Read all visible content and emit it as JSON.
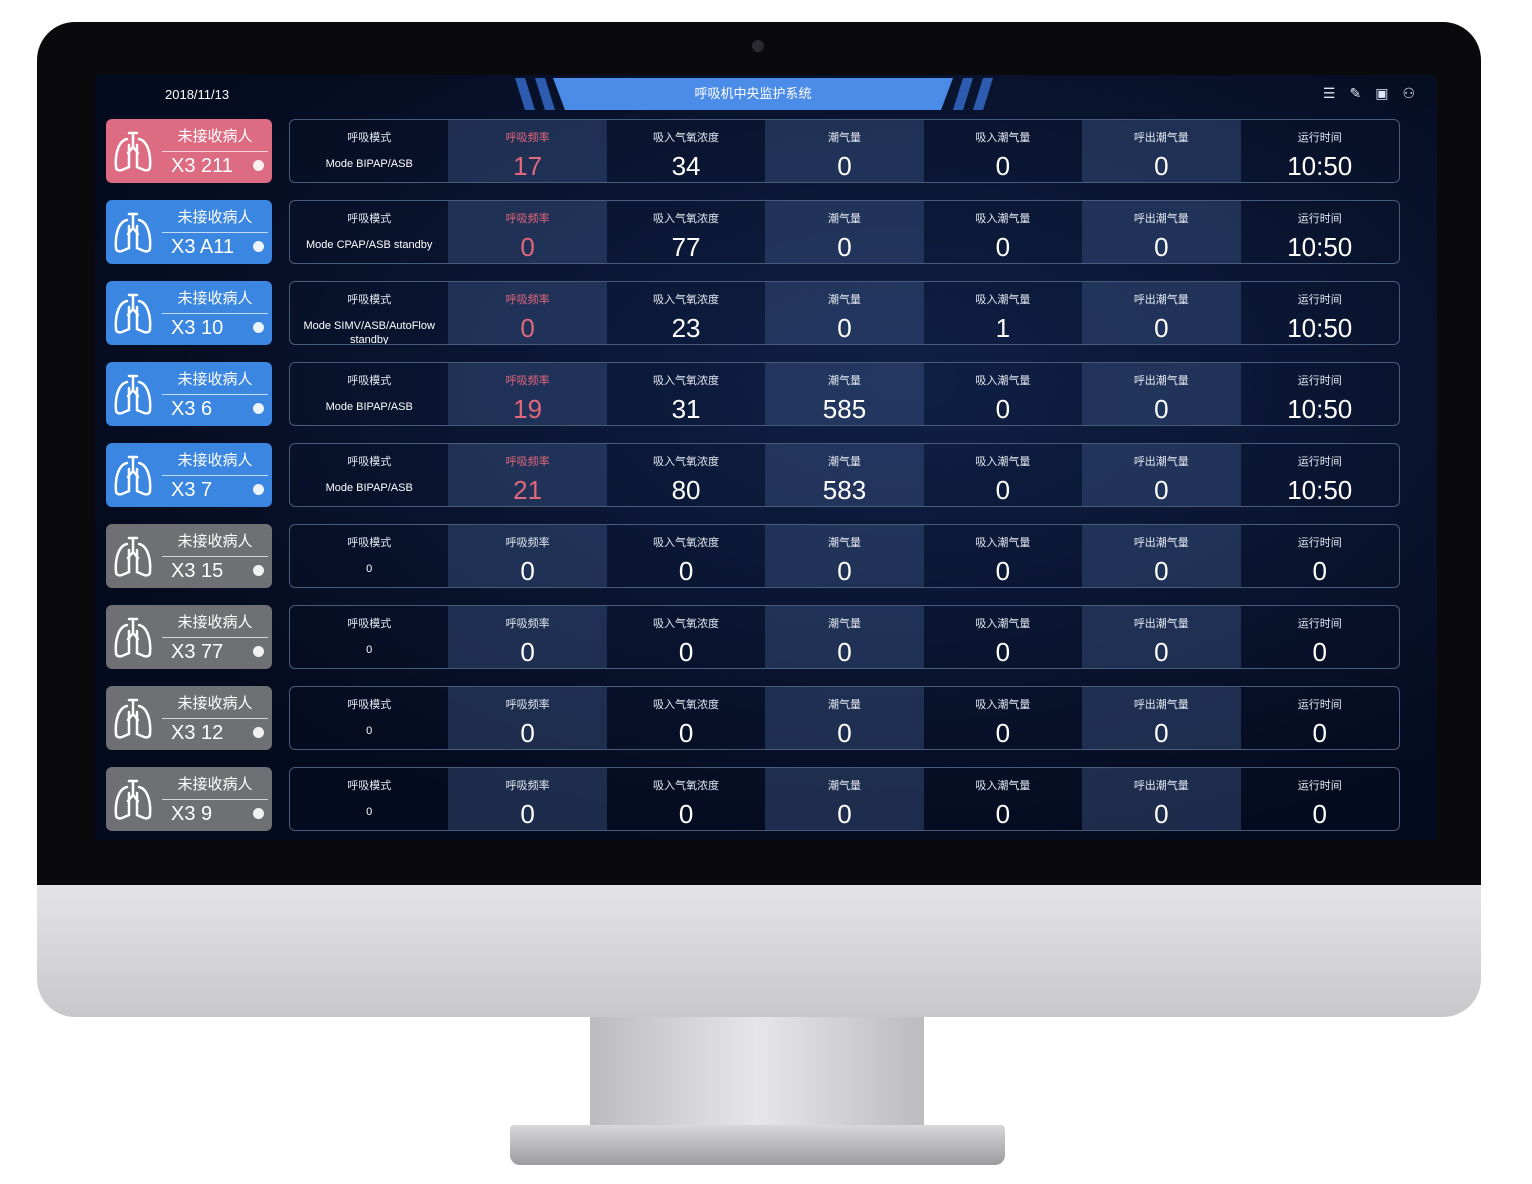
{
  "header": {
    "date": "2018/11/13",
    "title": "呼吸机中央监护系统",
    "icons": [
      "menu-list-icon",
      "edit-note-icon",
      "layout-icon",
      "user-icon"
    ]
  },
  "labels": [
    "呼吸模式",
    "呼吸频率",
    "吸入气氧浓度",
    "潮气量",
    "吸入潮气量",
    "呼出潮气量",
    "运行时间"
  ],
  "colors": {
    "alarm": "#dd6b82",
    "active": "#3a86e0",
    "inactive": "#6f7073",
    "alarm_text": "#e0677d"
  },
  "rows": [
    {
      "status": "未接收病人",
      "bed": "X3 211",
      "state": "alarm",
      "mode": "Mode BIPAP/ASB",
      "values": [
        "17",
        "34",
        "0",
        "0",
        "0",
        "10:50"
      ],
      "rate_red": true
    },
    {
      "status": "未接收病人",
      "bed": "X3 A11",
      "state": "active",
      "mode": "Mode CPAP/ASB standby",
      "values": [
        "0",
        "77",
        "0",
        "0",
        "0",
        "10:50"
      ],
      "rate_red": true
    },
    {
      "status": "未接收病人",
      "bed": "X3 10",
      "state": "active",
      "mode": "Mode SIMV/ASB/AutoFlow standby",
      "values": [
        "0",
        "23",
        "0",
        "1",
        "0",
        "10:50"
      ],
      "rate_red": true
    },
    {
      "status": "未接收病人",
      "bed": "X3 6",
      "state": "active",
      "mode": "Mode BIPAP/ASB",
      "values": [
        "19",
        "31",
        "585",
        "0",
        "0",
        "10:50"
      ],
      "rate_red": true
    },
    {
      "status": "未接收病人",
      "bed": "X3 7",
      "state": "active",
      "mode": "Mode BIPAP/ASB",
      "values": [
        "21",
        "80",
        "583",
        "0",
        "0",
        "10:50"
      ],
      "rate_red": true
    },
    {
      "status": "未接收病人",
      "bed": "X3 15",
      "state": "inactive",
      "mode": "0",
      "values": [
        "0",
        "0",
        "0",
        "0",
        "0",
        "0"
      ],
      "rate_red": false
    },
    {
      "status": "未接收病人",
      "bed": "X3 77",
      "state": "inactive",
      "mode": "0",
      "values": [
        "0",
        "0",
        "0",
        "0",
        "0",
        "0"
      ],
      "rate_red": false
    },
    {
      "status": "未接收病人",
      "bed": "X3 12",
      "state": "inactive",
      "mode": "0",
      "values": [
        "0",
        "0",
        "0",
        "0",
        "0",
        "0"
      ],
      "rate_red": false
    },
    {
      "status": "未接收病人",
      "bed": "X3 9",
      "state": "inactive",
      "mode": "0",
      "values": [
        "0",
        "0",
        "0",
        "0",
        "0",
        "0"
      ],
      "rate_red": false
    }
  ]
}
